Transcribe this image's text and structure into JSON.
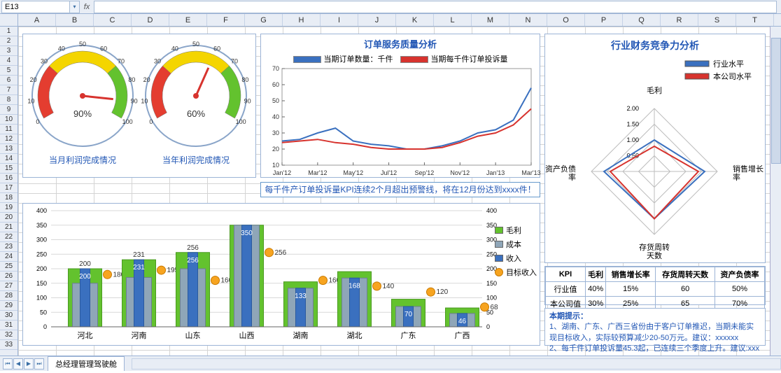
{
  "excel": {
    "active_cell": "E13",
    "fx_label": "fx",
    "columns": [
      "A",
      "B",
      "C",
      "D",
      "E",
      "F",
      "G",
      "H",
      "I",
      "J",
      "K",
      "L",
      "M",
      "N",
      "O",
      "P",
      "Q",
      "R",
      "S",
      "T"
    ],
    "rows": 33,
    "sheet_tab": "总经理管理驾驶舱"
  },
  "gauges": {
    "border_color": "#9cb4d6",
    "items": [
      {
        "caption": "当月利润完成情况",
        "value_label": "90%",
        "value_pct": 90,
        "ticks": [
          "0",
          "10",
          "20",
          "30",
          "40",
          "50",
          "60",
          "70",
          "80",
          "90",
          "100"
        ],
        "band_colors": [
          "#e43d30",
          "#f4d500",
          "#63c22e"
        ]
      },
      {
        "caption": "当年利润完成情况",
        "value_label": "60%",
        "value_pct": 60,
        "ticks": [
          "0",
          "10",
          "20",
          "30",
          "40",
          "50",
          "60",
          "70",
          "80",
          "90",
          "100"
        ],
        "band_colors": [
          "#e43d30",
          "#f4d500",
          "#63c22e"
        ]
      }
    ]
  },
  "line_chart": {
    "title": "订单服务质量分析",
    "legend": [
      {
        "label": "当期订单数量：千件",
        "color": "#3a70bf"
      },
      {
        "label": "当期每千件订单投诉量",
        "color": "#d7332e"
      }
    ],
    "x_labels": [
      "Jan'12",
      "Mar'12",
      "May'12",
      "Jul'12",
      "Sep'12",
      "Nov'12",
      "Jan'13",
      "Mar'13"
    ],
    "y_ticks": [
      10,
      20,
      30,
      40,
      50,
      60,
      70
    ],
    "ylim": [
      10,
      70
    ],
    "series": [
      {
        "name": "orders",
        "color": "#3a70bf",
        "values": [
          25,
          26,
          30,
          33,
          25,
          23,
          22,
          20,
          20,
          22,
          25,
          30,
          32,
          38,
          58
        ]
      },
      {
        "name": "complaints",
        "color": "#d7332e",
        "values": [
          24,
          25,
          26,
          24,
          23,
          21,
          20,
          20,
          20,
          21,
          24,
          28,
          30,
          35,
          45
        ]
      }
    ],
    "grid_color": "#d9d9d9",
    "background": "#ffffff"
  },
  "warning": "每千件产订单投诉量KPI连续2个月超出预警线，将在12月份达到xxxx件！",
  "bar_chart": {
    "y_ticks_left": [
      0,
      50,
      100,
      150,
      200,
      250,
      300,
      350,
      400
    ],
    "y_ticks_right": [
      0,
      50,
      100,
      150,
      200,
      250,
      300,
      350,
      400
    ],
    "ylim": [
      0,
      400
    ],
    "categories": [
      "河北",
      "河南",
      "山东",
      "山西",
      "湖南",
      "湖北",
      "广东",
      "广西"
    ],
    "legend": [
      {
        "label": "毛利",
        "color": "#63c22e",
        "type": "box"
      },
      {
        "label": "成本",
        "color": "#8fa6b8",
        "type": "box"
      },
      {
        "label": "收入",
        "color": "#3a70bf",
        "type": "box"
      },
      {
        "label": "目标收入",
        "color": "#f7a420",
        "type": "dot"
      }
    ],
    "bars": [
      {
        "revenue": 200,
        "cost": 150,
        "profit": 200,
        "target": 180,
        "target_label": "180",
        "top_label": "200"
      },
      {
        "revenue": 231,
        "cost": 170,
        "profit": 231,
        "target": 195,
        "target_label": "195",
        "top_label": "231"
      },
      {
        "revenue": 256,
        "cost": 200,
        "profit": 256,
        "target": 160,
        "target_label": "160",
        "top_label": "256"
      },
      {
        "revenue": 350,
        "cost": 350,
        "profit": 350,
        "target": 256,
        "target_label": "256",
        "top_label": ""
      },
      {
        "revenue": 133,
        "cost": 133,
        "profit": 155,
        "target": 160,
        "target_label": "160",
        "top_label": ""
      },
      {
        "revenue": 168,
        "cost": 168,
        "profit": 190,
        "target": 140,
        "target_label": "140",
        "top_label": ""
      },
      {
        "revenue": 70,
        "cost": 70,
        "profit": 95,
        "target": 120,
        "target_label": "120",
        "top_label": ""
      },
      {
        "revenue": 46,
        "cost": 46,
        "profit": 65,
        "target": 68,
        "target_label": "68",
        "top_label": ""
      }
    ],
    "colors": {
      "profit": "#63c22e",
      "cost": "#8fa6b8",
      "revenue": "#3a70bf",
      "target": "#f7a420"
    },
    "grid_color": "#d9d9d9"
  },
  "radar": {
    "title": "行业财务竞争力分析",
    "legend": [
      {
        "label": "行业水平",
        "color": "#3a70bf"
      },
      {
        "label": "本公司水平",
        "color": "#d7332e"
      }
    ],
    "axes": [
      "毛利",
      "销售增长率",
      "存货周转天数",
      "资产负债率"
    ],
    "ring_labels": [
      "0.50",
      "1.00",
      "1.50",
      "2.00"
    ],
    "rings": [
      0.5,
      1.0,
      1.5,
      2.0
    ],
    "max": 2.0,
    "series": [
      {
        "name": "industry",
        "color": "#3a70bf",
        "values": [
          1.0,
          1.6,
          1.5,
          1.6
        ]
      },
      {
        "name": "company",
        "color": "#d7332e",
        "values": [
          0.8,
          1.4,
          1.5,
          1.4
        ]
      }
    ],
    "grid_color": "#bdbdbd"
  },
  "kpi_table": {
    "headers": [
      "KPI",
      "毛利",
      "销售增长率",
      "存货周转天数",
      "资产负债率"
    ],
    "rows": [
      [
        "行业值",
        "40%",
        "15%",
        "60",
        "50%"
      ],
      [
        "本公司值",
        "30%",
        "25%",
        "65",
        "70%"
      ]
    ]
  },
  "tips": {
    "heading": "本期提示：",
    "lines": [
      "1、湖南、广东、广西三省份由于客户订单推迟，当期未能实现目标收入，实际较预算减少20-50万元。建议：xxxxxx",
      "2、每千件订单投诉量45.3起，已连续三个季度上升。建议:xxx"
    ]
  }
}
